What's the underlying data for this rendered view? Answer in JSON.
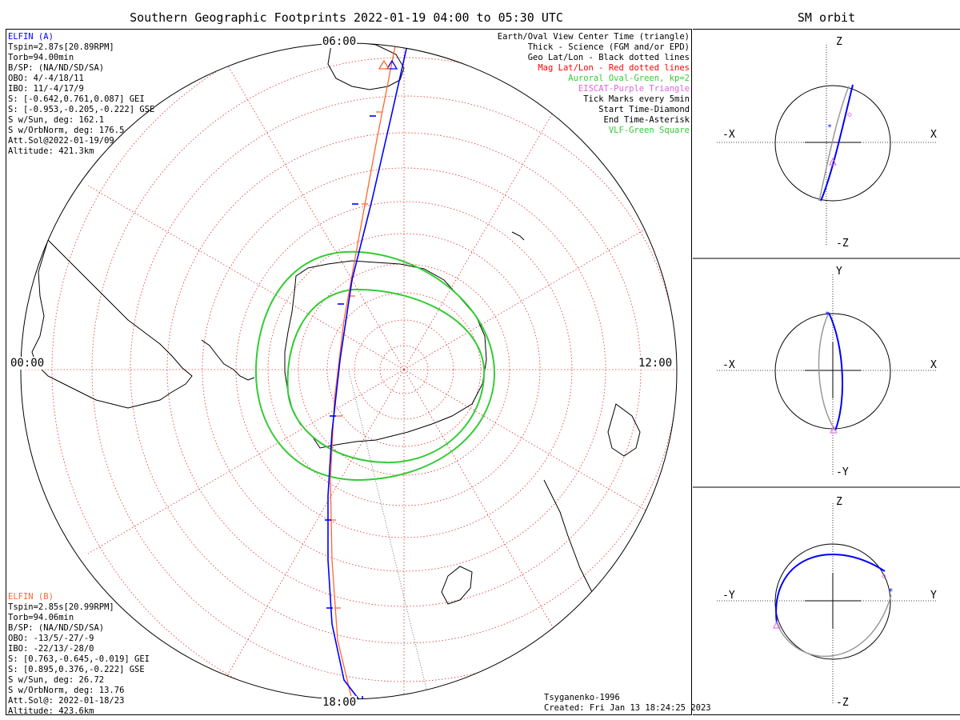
{
  "title": "Southern Geographic Footprints 2022-01-19 04:00 to 05:30 UTC",
  "orbit_title": "SM orbit",
  "elfin_a": {
    "name": "ELFIN (A)",
    "color": "#0000ff",
    "lines": [
      "Tspin=2.87s[20.89RPM]",
      "Torb=94.00min",
      "B/SP: (NA/ND/SD/SA)",
      "OBO: 4/-4/18/11",
      "IBO: 11/-4/17/9",
      "S: [-0.642,0.761,0.087] GEI",
      "S: [-0.953,-0.205,-0.222] GSE",
      "S w/Sun, deg: 162.1",
      "S w/OrbNorm, deg: 176.5",
      "Att.Sol@2022-01-19/09",
      "Altitude: 421.3km"
    ]
  },
  "elfin_b": {
    "name": "ELFIN (B)",
    "color": "#ff6633",
    "lines": [
      "Tspin=2.85s[20.99RPM]",
      "Torb=94.06min",
      "B/SP: (NA/ND/SD/SA)",
      "OBO: -13/5/-27/-9",
      "IBO: -22/13/-28/0",
      "S: [0.763,-0.645,-0.019] GEI",
      "S: [0.895,0.376,-0.222] GSE",
      "S w/Sun, deg: 26.72",
      "S w/OrbNorm, deg: 13.76",
      "Att.Sol@: 2022-01-18/23",
      "Altitude: 423.6km"
    ]
  },
  "legend": [
    {
      "text": "Earth/Oval View Center Time (triangle)",
      "color": "#000000"
    },
    {
      "text": "Thick - Science (FGM and/or EPD)",
      "color": "#000000"
    },
    {
      "text": "Geo Lat/Lon - Black dotted lines",
      "color": "#000000"
    },
    {
      "text": "Mag Lat/Lon - Red dotted lines",
      "color": "#ff0000"
    },
    {
      "text": "Auroral Oval-Green, kp=2",
      "color": "#33cc33"
    },
    {
      "text": "EISCAT-Purple Triangle",
      "color": "#dd66dd"
    },
    {
      "text": "Tick Marks every 5min",
      "color": "#000000"
    },
    {
      "text": "Start Time-Diamond",
      "color": "#000000"
    },
    {
      "text": "End Time-Asterisk",
      "color": "#000000"
    },
    {
      "text": "VLF-Green Square",
      "color": "#33cc33"
    }
  ],
  "hour_labels": {
    "top": "06:00",
    "left": "00:00",
    "right": "12:00",
    "bottom": "18:00"
  },
  "footer": {
    "model": "Tsyganenko-1996",
    "created": "Created: Fri Jan 13 18:24:25 2023"
  },
  "panels": [
    {
      "top": "Z",
      "bottom": "-Z",
      "left": "-X",
      "right": "X"
    },
    {
      "top": "Y",
      "bottom": "-Y",
      "left": "-X",
      "right": "X"
    },
    {
      "top": "Z",
      "bottom": "-Z",
      "left": "-Y",
      "right": "Y"
    }
  ]
}
